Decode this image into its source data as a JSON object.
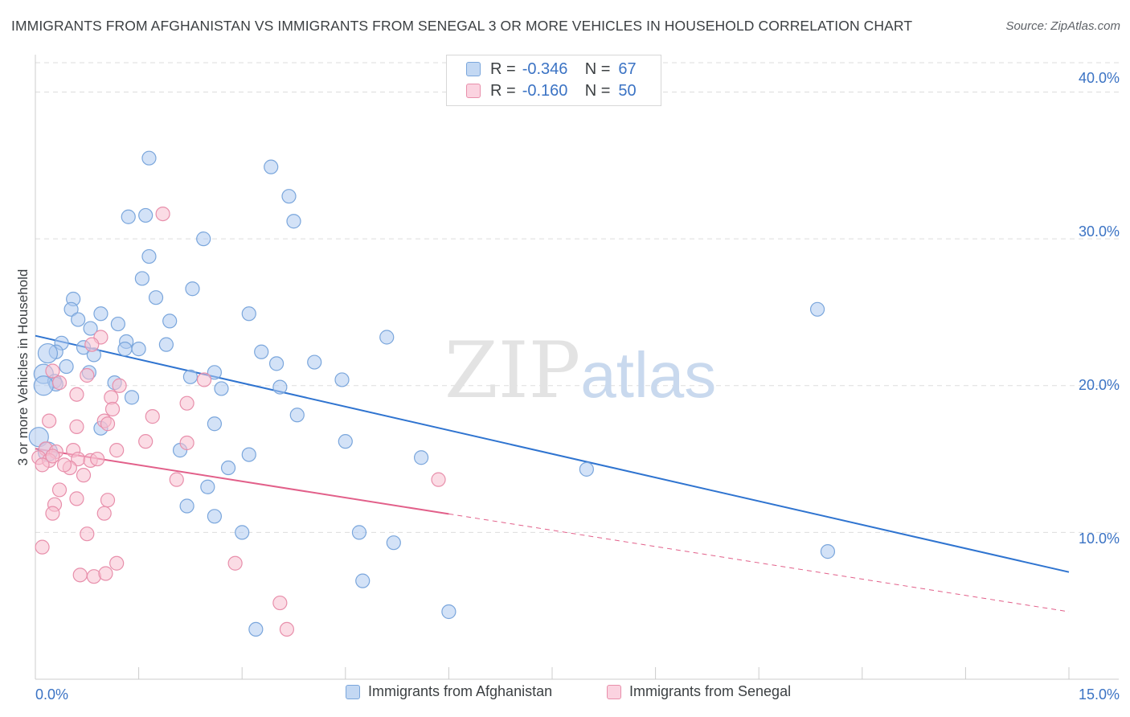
{
  "title": "IMMIGRANTS FROM AFGHANISTAN VS IMMIGRANTS FROM SENEGAL 3 OR MORE VEHICLES IN HOUSEHOLD CORRELATION CHART",
  "source": "Source: ZipAtlas.com",
  "watermark": {
    "zip": "ZIP",
    "atlas": "atlas"
  },
  "colors": {
    "afghanistan_fill": "#aecbf0",
    "afghanistan_stroke": "#7aa6dc",
    "afghanistan_line": "#2f74d0",
    "senegal_fill": "#f7bfd0",
    "senegal_stroke": "#e88fab",
    "senegal_line": "#e2608a",
    "tick_label": "#3b73c4",
    "grid": "#dddddd"
  },
  "legend": {
    "r_label": "R =",
    "n_label": "N =",
    "rows": [
      {
        "series": "Immigrants from Afghanistan",
        "r": "-0.346",
        "n": "67"
      },
      {
        "series": "Immigrants from Senegal",
        "r": "-0.160",
        "n": "50"
      }
    ]
  },
  "chart_data": {
    "type": "scatter",
    "title": "IMMIGRANTS FROM AFGHANISTAN VS IMMIGRANTS FROM SENEGAL 3 OR MORE VEHICLES IN HOUSEHOLD CORRELATION CHART",
    "xlabel": "",
    "ylabel": "3 or more Vehicles in Household",
    "xlim": [
      0,
      15
    ],
    "ylim": [
      0,
      42
    ],
    "x_tick_labels": [
      "0.0%",
      "15.0%"
    ],
    "y_ticks": [
      10,
      20,
      30,
      40
    ],
    "y_tick_labels": [
      "10.0%",
      "20.0%",
      "30.0%",
      "40.0%"
    ],
    "grid": true,
    "legend_position": "top-center and bottom",
    "series": [
      {
        "name": "Immigrants from Afghanistan",
        "r": -0.346,
        "n": 67,
        "trend": {
          "x": [
            0,
            15
          ],
          "y": [
            23.4,
            7.3
          ],
          "dashed_from_x": null
        },
        "points": [
          [
            1.65,
            35.5
          ],
          [
            3.42,
            34.9
          ],
          [
            3.68,
            32.9
          ],
          [
            1.35,
            31.5
          ],
          [
            1.6,
            31.6
          ],
          [
            3.75,
            31.2
          ],
          [
            2.44,
            30.0
          ],
          [
            1.65,
            28.8
          ],
          [
            1.55,
            27.3
          ],
          [
            2.28,
            26.6
          ],
          [
            1.75,
            26.0
          ],
          [
            0.55,
            25.9
          ],
          [
            0.52,
            25.2
          ],
          [
            0.95,
            24.9
          ],
          [
            3.1,
            24.9
          ],
          [
            11.35,
            25.2
          ],
          [
            0.62,
            24.5
          ],
          [
            1.95,
            24.4
          ],
          [
            1.2,
            24.2
          ],
          [
            0.8,
            23.9
          ],
          [
            5.1,
            23.3
          ],
          [
            1.32,
            23.0
          ],
          [
            0.38,
            22.9
          ],
          [
            1.9,
            22.8
          ],
          [
            0.7,
            22.6
          ],
          [
            1.3,
            22.5
          ],
          [
            1.5,
            22.5
          ],
          [
            0.3,
            22.3
          ],
          [
            0.18,
            22.2
          ],
          [
            3.28,
            22.3
          ],
          [
            0.85,
            22.1
          ],
          [
            4.05,
            21.6
          ],
          [
            3.5,
            21.5
          ],
          [
            0.45,
            21.3
          ],
          [
            0.78,
            20.9
          ],
          [
            2.6,
            20.9
          ],
          [
            0.12,
            20.8
          ],
          [
            2.25,
            20.6
          ],
          [
            4.45,
            20.4
          ],
          [
            0.28,
            20.3
          ],
          [
            0.3,
            20.1
          ],
          [
            0.12,
            20.0
          ],
          [
            1.15,
            20.2
          ],
          [
            3.55,
            19.9
          ],
          [
            2.7,
            19.8
          ],
          [
            1.4,
            19.2
          ],
          [
            3.8,
            18.0
          ],
          [
            0.95,
            17.1
          ],
          [
            2.6,
            17.4
          ],
          [
            4.5,
            16.2
          ],
          [
            0.05,
            16.5
          ],
          [
            2.1,
            15.6
          ],
          [
            0.18,
            15.5
          ],
          [
            3.1,
            15.3
          ],
          [
            5.6,
            15.1
          ],
          [
            8.0,
            14.3
          ],
          [
            2.8,
            14.4
          ],
          [
            2.5,
            13.1
          ],
          [
            2.2,
            11.8
          ],
          [
            2.6,
            11.1
          ],
          [
            3.0,
            10.0
          ],
          [
            4.7,
            10.0
          ],
          [
            5.2,
            9.3
          ],
          [
            11.5,
            8.7
          ],
          [
            4.75,
            6.7
          ],
          [
            6.0,
            4.6
          ],
          [
            3.2,
            3.4
          ]
        ]
      },
      {
        "name": "Immigrants from Senegal",
        "r": -0.16,
        "n": 50,
        "trend": {
          "x": [
            0,
            15
          ],
          "y": [
            15.7,
            4.6
          ],
          "dashed_from_x": 6.0
        },
        "points": [
          [
            1.85,
            31.7
          ],
          [
            0.95,
            23.3
          ],
          [
            0.82,
            22.8
          ],
          [
            0.25,
            21.0
          ],
          [
            0.75,
            20.7
          ],
          [
            2.45,
            20.4
          ],
          [
            0.35,
            20.2
          ],
          [
            1.22,
            20.0
          ],
          [
            0.6,
            19.4
          ],
          [
            1.1,
            19.2
          ],
          [
            2.2,
            18.8
          ],
          [
            1.12,
            18.4
          ],
          [
            1.7,
            17.9
          ],
          [
            0.2,
            17.6
          ],
          [
            0.6,
            17.2
          ],
          [
            1.0,
            17.6
          ],
          [
            1.05,
            17.4
          ],
          [
            1.6,
            16.2
          ],
          [
            2.2,
            16.1
          ],
          [
            0.15,
            15.7
          ],
          [
            0.55,
            15.6
          ],
          [
            1.18,
            15.6
          ],
          [
            0.3,
            15.5
          ],
          [
            0.05,
            15.1
          ],
          [
            0.2,
            14.9
          ],
          [
            0.62,
            15.0
          ],
          [
            0.8,
            14.9
          ],
          [
            0.1,
            14.6
          ],
          [
            0.5,
            14.4
          ],
          [
            0.7,
            13.9
          ],
          [
            2.05,
            13.6
          ],
          [
            0.35,
            12.9
          ],
          [
            1.05,
            12.2
          ],
          [
            0.6,
            12.3
          ],
          [
            0.28,
            11.9
          ],
          [
            0.25,
            11.3
          ],
          [
            1.0,
            11.3
          ],
          [
            5.85,
            13.6
          ],
          [
            0.75,
            9.9
          ],
          [
            0.1,
            9.0
          ],
          [
            2.9,
            7.9
          ],
          [
            1.18,
            7.9
          ],
          [
            0.65,
            7.1
          ],
          [
            0.85,
            7.0
          ],
          [
            1.02,
            7.2
          ],
          [
            3.55,
            5.2
          ],
          [
            3.65,
            3.4
          ],
          [
            0.42,
            14.6
          ],
          [
            0.25,
            15.2
          ],
          [
            0.9,
            15.0
          ]
        ]
      }
    ]
  }
}
